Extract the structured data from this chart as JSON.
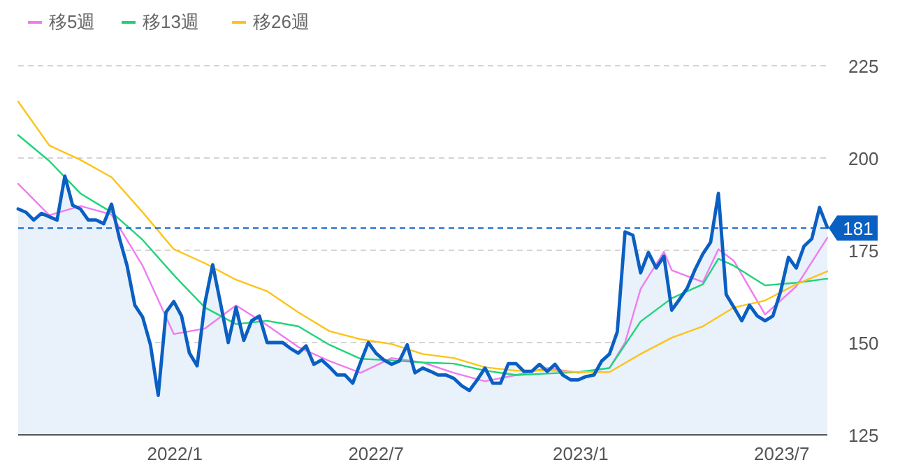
{
  "chart_data": {
    "type": "line",
    "x": [
      "2021-08-13",
      "2021-08-20",
      "2021-08-27",
      "2021-09-03",
      "2021-09-10",
      "2021-09-17",
      "2021-09-24",
      "2021-10-01",
      "2021-10-08",
      "2021-10-15",
      "2021-10-22",
      "2021-10-29",
      "2021-11-05",
      "2021-11-12",
      "2021-11-19",
      "2021-11-26",
      "2021-12-03",
      "2021-12-10",
      "2021-12-17",
      "2021-12-24",
      "2021-12-31",
      "2022-01-07",
      "2022-01-14",
      "2022-01-21",
      "2022-01-28",
      "2022-02-04",
      "2022-02-11",
      "2022-02-18",
      "2022-02-25",
      "2022-03-04",
      "2022-03-11",
      "2022-03-18",
      "2022-03-25",
      "2022-04-01",
      "2022-04-08",
      "2022-04-15",
      "2022-04-22",
      "2022-04-29",
      "2022-05-06",
      "2022-05-13",
      "2022-05-20",
      "2022-05-27",
      "2022-06-03",
      "2022-06-10",
      "2022-06-17",
      "2022-06-24",
      "2022-07-01",
      "2022-07-08",
      "2022-07-15",
      "2022-07-22",
      "2022-07-29",
      "2022-08-05",
      "2022-08-12",
      "2022-08-19",
      "2022-08-26",
      "2022-09-02",
      "2022-09-09",
      "2022-09-16",
      "2022-09-23",
      "2022-09-30",
      "2022-10-07",
      "2022-10-14",
      "2022-10-21",
      "2022-10-28",
      "2022-11-04",
      "2022-11-11",
      "2022-11-18",
      "2022-11-25",
      "2022-12-02",
      "2022-12-09",
      "2022-12-16",
      "2022-12-23",
      "2022-12-30",
      "2023-01-06",
      "2023-01-13",
      "2023-01-20",
      "2023-01-27",
      "2023-02-03",
      "2023-02-10",
      "2023-02-17",
      "2023-02-24",
      "2023-03-03",
      "2023-03-10",
      "2023-03-17",
      "2023-03-24",
      "2023-03-31",
      "2023-04-07",
      "2023-04-14",
      "2023-04-21",
      "2023-04-28",
      "2023-05-05",
      "2023-05-12",
      "2023-05-19",
      "2023-05-26",
      "2023-06-02",
      "2023-06-09",
      "2023-06-16",
      "2023-06-23",
      "2023-06-30",
      "2023-07-07",
      "2023-07-14",
      "2023-07-21",
      "2023-07-28",
      "2023-08-04",
      "2023-08-11"
    ],
    "series": [
      {
        "type": "area",
        "color": "#0a5fc2",
        "values": [
          186.2,
          185.3,
          183.2,
          185.0,
          184.1,
          183.2,
          195.1,
          187.2,
          186.2,
          183.2,
          183.2,
          182.2,
          187.5,
          178.4,
          170.8,
          160.1,
          156.9,
          149.4,
          135.7,
          158.2,
          161.1,
          157.2,
          147.2,
          143.7,
          160.7,
          171.1,
          160.7,
          150.0,
          159.5,
          150.6,
          155.9,
          157.2,
          150.0,
          150.0,
          150.0,
          148.4,
          147.1,
          149.1,
          144.1,
          145.3,
          143.4,
          141.2,
          141.2,
          139.0,
          144.6,
          150.0,
          147.1,
          145.3,
          144.1,
          145.0,
          149.4,
          141.8,
          143.1,
          142.2,
          141.2,
          141.2,
          140.3,
          138.3,
          137.0,
          139.9,
          143.1,
          139.0,
          139.0,
          144.3,
          144.3,
          142.2,
          142.2,
          144.1,
          142.2,
          144.1,
          141.2,
          139.9,
          139.9,
          140.8,
          141.2,
          145.0,
          146.9,
          152.9,
          180.0,
          179.1,
          168.9,
          174.4,
          170.2,
          173.4,
          158.8,
          161.7,
          164.8,
          169.8,
          174.0,
          177.2,
          190.4,
          163.0,
          159.5,
          155.9,
          160.1,
          157.2,
          155.9,
          157.2,
          163.9,
          173.1,
          170.2,
          176.1,
          178.1,
          186.6,
          181.2
        ]
      },
      {
        "name": "移5週",
        "color": "#f07cf0",
        "x": [
          "2021-08-13",
          "2021-09-10",
          "2021-10-08",
          "2021-11-05",
          "2021-12-03",
          "2021-12-31",
          "2022-01-28",
          "2022-02-25",
          "2022-03-25",
          "2022-04-22",
          "2022-05-20",
          "2022-06-17",
          "2022-07-15",
          "2022-08-12",
          "2022-09-09",
          "2022-10-07",
          "2022-11-04",
          "2022-12-02",
          "2022-12-30",
          "2023-01-27",
          "2023-02-10",
          "2023-02-24",
          "2023-03-17",
          "2023-03-24",
          "2023-04-21",
          "2023-05-05",
          "2023-05-19",
          "2023-06-16",
          "2023-07-14",
          "2023-08-11"
        ],
        "values": [
          193.0,
          184.5,
          187.0,
          184.7,
          170.8,
          152.3,
          153.8,
          160.1,
          154.7,
          148.8,
          145.0,
          141.8,
          145.8,
          144.6,
          141.8,
          139.5,
          141.2,
          143.1,
          141.8,
          143.1,
          150.0,
          164.5,
          174.6,
          169.6,
          166.4,
          175.3,
          172.1,
          157.6,
          165.2,
          178.4
        ]
      },
      {
        "name": "移13週",
        "color": "#1ed47a",
        "x": [
          "2021-08-13",
          "2021-09-10",
          "2021-10-08",
          "2021-11-05",
          "2021-12-03",
          "2021-12-31",
          "2022-01-28",
          "2022-02-25",
          "2022-03-25",
          "2022-04-22",
          "2022-05-20",
          "2022-06-17",
          "2022-07-15",
          "2022-08-12",
          "2022-09-09",
          "2022-10-07",
          "2022-11-04",
          "2022-12-02",
          "2022-12-30",
          "2023-01-27",
          "2023-02-24",
          "2023-03-24",
          "2023-04-21",
          "2023-05-05",
          "2023-05-19",
          "2023-06-16",
          "2023-07-14",
          "2023-08-11"
        ],
        "values": [
          206.2,
          199.2,
          190.4,
          185.3,
          177.8,
          168.3,
          159.5,
          155.0,
          155.9,
          154.4,
          149.4,
          145.6,
          145.2,
          144.6,
          144.3,
          142.4,
          141.2,
          141.6,
          142.0,
          143.1,
          155.7,
          162.0,
          165.8,
          172.7,
          170.8,
          165.5,
          166.2,
          167.3
        ]
      },
      {
        "name": "移26週",
        "color": "#fcc419",
        "x": [
          "2021-08-13",
          "2021-09-10",
          "2021-10-08",
          "2021-11-05",
          "2021-12-03",
          "2021-12-31",
          "2022-01-28",
          "2022-02-25",
          "2022-03-25",
          "2022-04-22",
          "2022-05-20",
          "2022-06-17",
          "2022-07-15",
          "2022-08-12",
          "2022-09-09",
          "2022-10-07",
          "2022-11-04",
          "2022-12-02",
          "2022-12-30",
          "2023-01-27",
          "2023-02-24",
          "2023-03-24",
          "2023-04-21",
          "2023-05-19",
          "2023-06-16",
          "2023-07-14",
          "2023-08-11"
        ],
        "values": [
          215.3,
          203.4,
          199.5,
          194.8,
          185.3,
          175.3,
          171.5,
          167.0,
          163.9,
          158.2,
          153.1,
          150.9,
          149.6,
          146.9,
          145.8,
          143.3,
          142.4,
          142.4,
          142.0,
          142.0,
          146.9,
          151.3,
          154.4,
          159.5,
          161.4,
          165.8,
          169.3
        ]
      }
    ],
    "xlim": [
      "2021-08-13",
      "2023-08-11"
    ],
    "xticks": [
      {
        "value": "2022-01-01",
        "label": "2022/1"
      },
      {
        "value": "2022-07-01",
        "label": "2022/7"
      },
      {
        "value": "2023-01-01",
        "label": "2023/1"
      },
      {
        "value": "2023-07-01",
        "label": "2023/7"
      }
    ],
    "ylim": [
      125,
      225
    ],
    "yticks": [
      125,
      150,
      175,
      200,
      225
    ],
    "ref_lines": [
      {
        "axis": "y",
        "value": 181,
        "label": "181",
        "color": "#0a5fc2",
        "line_style": "dashed"
      }
    ],
    "grid": "y",
    "legend": "top left"
  }
}
